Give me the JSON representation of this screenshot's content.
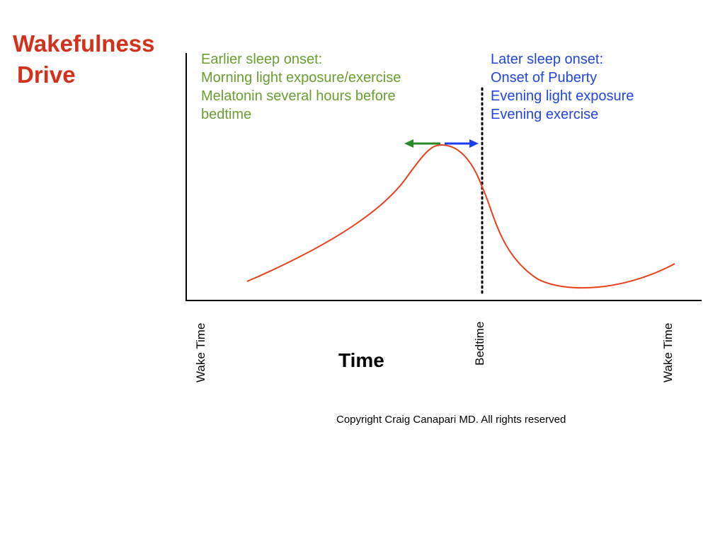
{
  "y_axis_label": [
    "Wakefulness",
    "Drive"
  ],
  "x_axis_label": "Time",
  "x_ticks": [
    {
      "name": "x-tick-wake-time-start",
      "label": "Wake Time"
    },
    {
      "name": "x-tick-bedtime",
      "label": "Bedtime"
    },
    {
      "name": "x-tick-wake-time-end",
      "label": "Wake Time"
    }
  ],
  "earlier_note": {
    "lines": [
      "Earlier sleep onset:",
      "Morning light exposure/exercise",
      "Melatonin several hours before",
      "bedtime"
    ],
    "color": "#6a9e31",
    "arrow_color": "#2a8a2a"
  },
  "later_note": {
    "lines": [
      "Later sleep onset:",
      "Onset of Puberty",
      "Evening light exposure",
      "Evening exercise"
    ],
    "color": "#2145e0",
    "arrow_color": "#1c3ff2"
  },
  "curve_color": "#e8401c",
  "label_color": "#d4311c",
  "copyright": "Copyright Craig Canapari MD. All rights reserved"
}
